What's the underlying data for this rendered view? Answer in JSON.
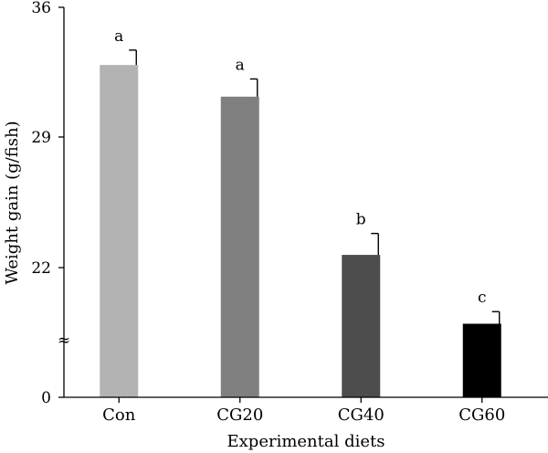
{
  "chart_data": {
    "type": "bar",
    "categories": [
      "Con",
      "CG20",
      "CG40",
      "CG60"
    ],
    "values": [
      32.9,
      31.2,
      22.7,
      19.0
    ],
    "errors": [
      0.8,
      0.95,
      1.15,
      0.65
    ],
    "significance": [
      "a",
      "a",
      "b",
      "c"
    ],
    "bar_colors": [
      "#b3b3b3",
      "#808080",
      "#4d4d4d",
      "#000000"
    ],
    "xlabel": "Experimental diets",
    "ylabel": "Weight gain (g/fish)",
    "yticks": [
      0,
      22,
      29,
      36
    ],
    "y_axis_break": "≈",
    "y_axis_broken": true,
    "ylim_upper": [
      15,
      36
    ],
    "grid": false
  }
}
